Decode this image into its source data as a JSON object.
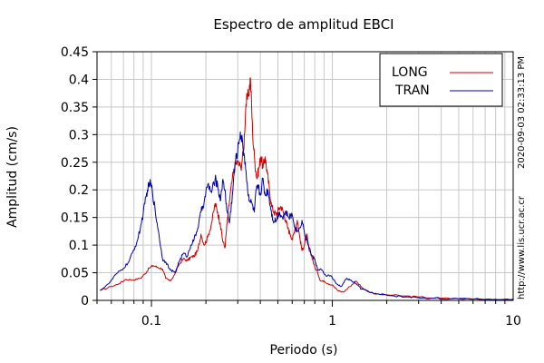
{
  "chart_data": {
    "type": "line",
    "title": "Espectro de amplitud EBCI",
    "xlabel": "Periodo (s)",
    "ylabel": "Amplitud (cm/s)",
    "xscale": "log",
    "xlim": [
      0.05,
      10
    ],
    "ylim": [
      0,
      0.45
    ],
    "xticks": [
      {
        "value": 0.1,
        "label": "0.1"
      },
      {
        "value": 1,
        "label": "1"
      },
      {
        "value": 10,
        "label": "10"
      }
    ],
    "yticks": [
      {
        "value": 0,
        "label": "0"
      },
      {
        "value": 0.05,
        "label": "0.05"
      },
      {
        "value": 0.1,
        "label": "0.1"
      },
      {
        "value": 0.15,
        "label": "0.15"
      },
      {
        "value": 0.2,
        "label": "0.2"
      },
      {
        "value": 0.25,
        "label": "0.25"
      },
      {
        "value": 0.3,
        "label": "0.3"
      },
      {
        "value": 0.35,
        "label": "0.35"
      },
      {
        "value": 0.4,
        "label": "0.4"
      },
      {
        "value": 0.45,
        "label": "0.45"
      }
    ],
    "grid": true,
    "legend": "top-right",
    "series": [
      {
        "name": "LONG",
        "color": "#cc0000",
        "x": [
          0.052,
          0.06,
          0.066,
          0.072,
          0.08,
          0.087,
          0.092,
          0.097,
          0.102,
          0.108,
          0.115,
          0.12,
          0.127,
          0.135,
          0.142,
          0.15,
          0.158,
          0.165,
          0.172,
          0.18,
          0.188,
          0.196,
          0.205,
          0.215,
          0.225,
          0.232,
          0.24,
          0.247,
          0.255,
          0.262,
          0.27,
          0.28,
          0.29,
          0.3,
          0.312,
          0.323,
          0.333,
          0.343,
          0.353,
          0.363,
          0.373,
          0.383,
          0.393,
          0.403,
          0.414,
          0.425,
          0.437,
          0.449,
          0.462,
          0.476,
          0.49,
          0.505,
          0.52,
          0.536,
          0.552,
          0.568,
          0.585,
          0.603,
          0.621,
          0.64,
          0.66,
          0.68,
          0.7,
          0.72,
          0.745,
          0.77,
          0.8,
          0.83,
          0.86,
          0.9,
          0.95,
          1.0,
          1.07,
          1.15,
          1.25,
          1.35,
          1.5,
          1.7,
          2.0,
          2.5,
          3.0,
          4.0,
          5.0,
          7.0,
          10.0
        ],
        "y": [
          0.018,
          0.025,
          0.03,
          0.038,
          0.037,
          0.04,
          0.048,
          0.058,
          0.063,
          0.06,
          0.057,
          0.04,
          0.035,
          0.048,
          0.065,
          0.075,
          0.072,
          0.078,
          0.08,
          0.09,
          0.12,
          0.1,
          0.115,
          0.14,
          0.175,
          0.16,
          0.14,
          0.11,
          0.095,
          0.14,
          0.18,
          0.22,
          0.245,
          0.25,
          0.24,
          0.27,
          0.355,
          0.37,
          0.402,
          0.3,
          0.25,
          0.22,
          0.24,
          0.26,
          0.24,
          0.26,
          0.23,
          0.2,
          0.17,
          0.16,
          0.155,
          0.165,
          0.17,
          0.16,
          0.145,
          0.13,
          0.12,
          0.11,
          0.13,
          0.145,
          0.115,
          0.09,
          0.1,
          0.12,
          0.09,
          0.08,
          0.06,
          0.05,
          0.035,
          0.035,
          0.03,
          0.028,
          0.018,
          0.015,
          0.025,
          0.035,
          0.02,
          0.012,
          0.01,
          0.008,
          0.006,
          0.004,
          0.003,
          0.002,
          0.002
        ]
      },
      {
        "name": "TRAN",
        "color": "#0000aa",
        "x": [
          0.052,
          0.058,
          0.064,
          0.07,
          0.075,
          0.08,
          0.084,
          0.088,
          0.092,
          0.095,
          0.098,
          0.101,
          0.105,
          0.11,
          0.115,
          0.12,
          0.127,
          0.135,
          0.142,
          0.15,
          0.158,
          0.165,
          0.172,
          0.18,
          0.188,
          0.196,
          0.205,
          0.215,
          0.225,
          0.232,
          0.24,
          0.247,
          0.255,
          0.262,
          0.27,
          0.28,
          0.29,
          0.3,
          0.31,
          0.32,
          0.33,
          0.34,
          0.35,
          0.36,
          0.37,
          0.38,
          0.39,
          0.4,
          0.412,
          0.425,
          0.44,
          0.455,
          0.47,
          0.49,
          0.51,
          0.53,
          0.55,
          0.575,
          0.6,
          0.625,
          0.65,
          0.68,
          0.71,
          0.74,
          0.77,
          0.8,
          0.83,
          0.87,
          0.92,
          0.98,
          1.05,
          1.12,
          1.2,
          1.28,
          1.36,
          1.45,
          1.55,
          1.7,
          1.9,
          2.2,
          2.6,
          3.0,
          3.5,
          4.5,
          6.0,
          8.0,
          10.0
        ],
        "y": [
          0.018,
          0.03,
          0.048,
          0.058,
          0.07,
          0.092,
          0.11,
          0.14,
          0.175,
          0.2,
          0.213,
          0.2,
          0.16,
          0.12,
          0.075,
          0.07,
          0.055,
          0.05,
          0.07,
          0.085,
          0.08,
          0.1,
          0.11,
          0.13,
          0.16,
          0.18,
          0.21,
          0.195,
          0.22,
          0.21,
          0.18,
          0.215,
          0.2,
          0.16,
          0.14,
          0.19,
          0.25,
          0.27,
          0.305,
          0.28,
          0.25,
          0.2,
          0.18,
          0.175,
          0.16,
          0.2,
          0.205,
          0.19,
          0.22,
          0.19,
          0.2,
          0.17,
          0.145,
          0.145,
          0.16,
          0.15,
          0.16,
          0.15,
          0.155,
          0.13,
          0.125,
          0.145,
          0.115,
          0.1,
          0.08,
          0.075,
          0.055,
          0.055,
          0.045,
          0.045,
          0.03,
          0.025,
          0.04,
          0.035,
          0.03,
          0.02,
          0.018,
          0.012,
          0.01,
          0.008,
          0.006,
          0.005,
          0.004,
          0.003,
          0.002,
          0.002,
          0.002
        ]
      }
    ]
  },
  "side_texts": {
    "timestamp": "2020-09-03 02:33:13 PM",
    "website": "http://www.lis.ucr.ac.cr"
  }
}
